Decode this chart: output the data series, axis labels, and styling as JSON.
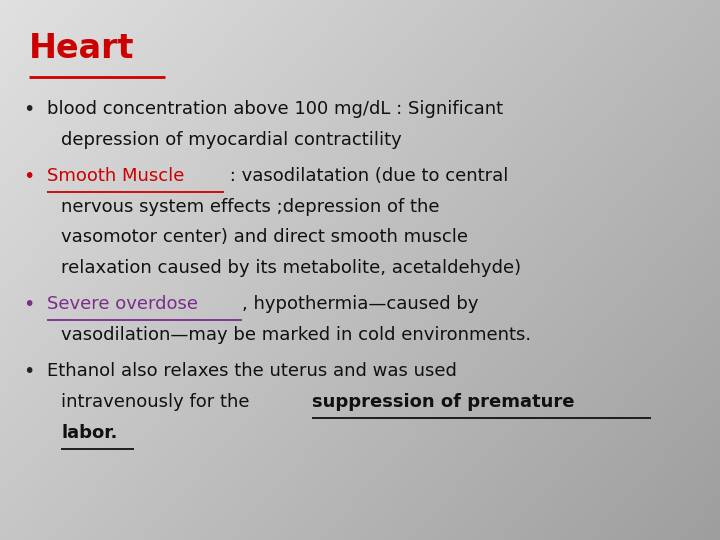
{
  "title": "Heart",
  "title_color": "#cc0000",
  "bg_light": 0.88,
  "bg_dark": 0.62,
  "bullets": [
    {
      "bullet_color": "#222222",
      "segments": [
        {
          "text": "blood concentration above 100 mg/dL : Significant\ndepression of myocardial contractility",
          "color": "#111111",
          "bold": false,
          "underline": false
        }
      ]
    },
    {
      "bullet_color": "#cc0000",
      "segments": [
        {
          "text": "Smooth Muscle",
          "color": "#cc0000",
          "bold": false,
          "underline": true
        },
        {
          "text": " : vasodilatation (due to central\nnervous system effects ;depression of the\nvasomotor center) and direct smooth muscle\nrelaxation caused by its metabolite, acetaldehyde)",
          "color": "#111111",
          "bold": false,
          "underline": false
        }
      ]
    },
    {
      "bullet_color": "#7b2d8b",
      "segments": [
        {
          "text": "Severe overdose",
          "color": "#7b2d8b",
          "bold": false,
          "underline": true
        },
        {
          "text": ", hypothermia—caused by\nvasodilation—may be marked in cold environments.",
          "color": "#111111",
          "bold": false,
          "underline": false
        }
      ]
    },
    {
      "bullet_color": "#222222",
      "segments": [
        {
          "text": "Ethanol also relaxes the uterus and was used\nintravenously for the ",
          "color": "#111111",
          "bold": false,
          "underline": false
        },
        {
          "text": "suppression of premature\nlabor.",
          "color": "#111111",
          "bold": true,
          "underline": true
        }
      ]
    }
  ],
  "font_size": 13.0,
  "title_font_size": 24,
  "figsize": [
    7.2,
    5.4
  ],
  "dpi": 100
}
